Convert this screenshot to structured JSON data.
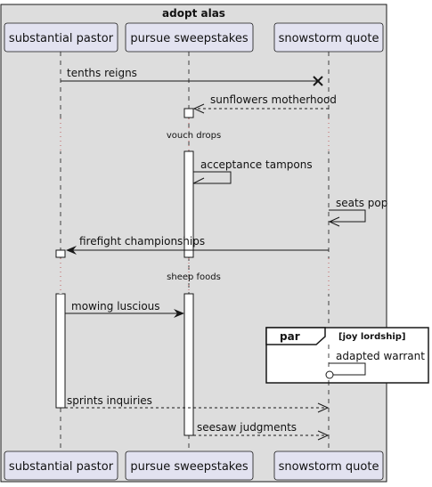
{
  "diagram": {
    "box_title": "adopt alas",
    "participants": [
      "substantial pastor",
      "pursue sweepstakes",
      "snowstorm quote"
    ],
    "messages": [
      {
        "label": "tenths reigns"
      },
      {
        "label": "sunflowers motherhood"
      },
      {
        "label": "acceptance tampons"
      },
      {
        "label": "seats pop"
      },
      {
        "label": "firefight championships"
      },
      {
        "label": "mowing luscious"
      },
      {
        "label": "adapted warrant"
      },
      {
        "label": "sprints inquiries"
      },
      {
        "label": "seesaw judgments"
      }
    ],
    "dividers": [
      "vouch drops",
      "sheep foods"
    ],
    "fragment": {
      "keyword": "par",
      "condition": "[joy lordship]"
    },
    "colors": {
      "box_fill": "#DDDDDD",
      "participant_fill": "#E2E2F0",
      "participant_stroke": "#181818",
      "line": "#181818"
    }
  }
}
